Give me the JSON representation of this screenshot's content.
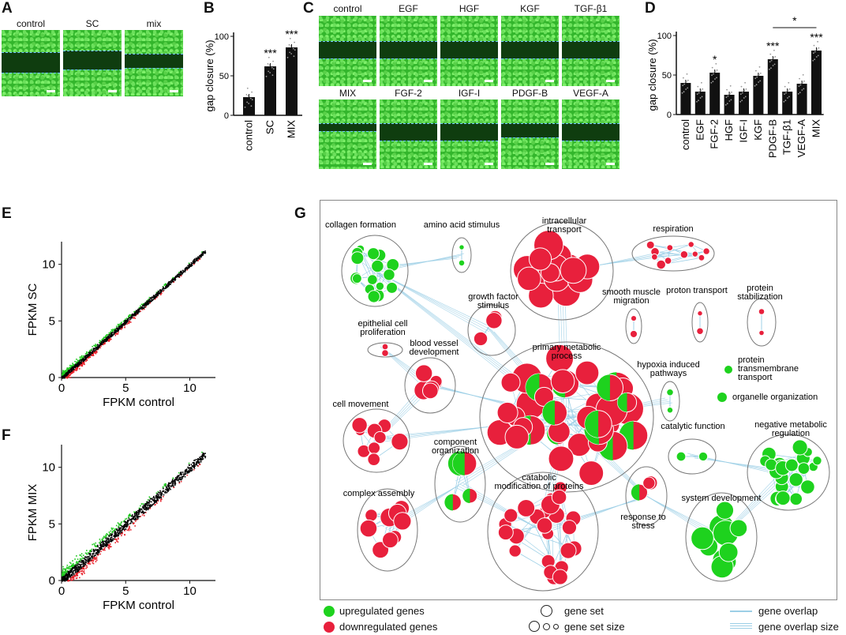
{
  "panels": {
    "A": "A",
    "B": "B",
    "C": "C",
    "D": "D",
    "E": "E",
    "F": "F",
    "G": "G"
  },
  "panelA": {
    "labels": [
      "control",
      "SC",
      "mix"
    ]
  },
  "panelC": {
    "row1": [
      "control",
      "EGF",
      "HGF",
      "KGF",
      "TGF-β1"
    ],
    "row2": [
      "MIX",
      "FGF-2",
      "IGF-I",
      "PDGF-B",
      "VEGF-A"
    ]
  },
  "chart_data": [
    {
      "type": "bar",
      "id": "B",
      "categories": [
        "control",
        "SC",
        "MIX"
      ],
      "values": [
        23,
        62,
        86
      ],
      "significance": [
        "",
        "***",
        "***"
      ],
      "ylabel": "gap closure (%)",
      "ylim": [
        0,
        100
      ],
      "yticks": [
        0,
        50,
        100
      ]
    },
    {
      "type": "bar",
      "id": "D",
      "categories": [
        "control",
        "EGF",
        "FGF-2",
        "HGF",
        "IGF-I",
        "KGF",
        "PDGF-B",
        "TGF-β1",
        "VEGF-A",
        "MIX"
      ],
      "values": [
        40,
        29,
        53,
        25,
        29,
        49,
        70,
        29,
        39,
        81
      ],
      "significance": [
        "",
        "",
        "*",
        "",
        "",
        "",
        "***",
        "",
        "",
        "***"
      ],
      "bracket": {
        "from": "PDGF-B",
        "to": "MIX",
        "label": "*"
      },
      "ylabel": "gap closure (%)",
      "ylim": [
        0,
        100
      ],
      "yticks": [
        0,
        50,
        100
      ]
    },
    {
      "type": "scatter",
      "id": "E",
      "xlabel": "FPKM control",
      "ylabel": "FPKM SC",
      "xlim": [
        0,
        12
      ],
      "ylim": [
        0,
        12
      ],
      "xticks": [
        0,
        5,
        10
      ],
      "yticks": [
        0,
        5,
        10
      ]
    },
    {
      "type": "scatter",
      "id": "F",
      "xlabel": "FPKM control",
      "ylabel": "FPKM MIX",
      "xlim": [
        0,
        12
      ],
      "ylim": [
        0,
        12
      ],
      "xticks": [
        0,
        5,
        10
      ],
      "yticks": [
        0,
        5,
        10
      ]
    }
  ],
  "network": {
    "clusters": [
      "collagen formation",
      "amino acid stimulus",
      "intracellular transport",
      "respiration",
      "growth factor stimulus",
      "smooth muscle migration",
      "proton transport",
      "protein stabilization",
      "epithelial cell proliferation",
      "blood vessel development",
      "primary metabolic process",
      "hypoxia induced pathways",
      "cell movement",
      "catalytic function",
      "negative metabolic regulation",
      "component organization",
      "catabolic modification of proteins",
      "complex assembly",
      "response to stress",
      "system development"
    ],
    "side_labels": [
      "protein transmembrane transport",
      "organelle organization"
    ]
  },
  "legend": {
    "up": "upregulated genes",
    "down": "downregulated genes",
    "gene_set": "gene set",
    "gene_set_size": "gene set size",
    "overlap": "gene overlap",
    "overlap_size": "gene overlap size"
  },
  "colors": {
    "up": "#1ed21e",
    "down": "#e8203c",
    "edge": "#9ccfe6",
    "scatter_mid": "#000000",
    "scatter_up": "#1ec81e",
    "scatter_down": "#e8202a"
  }
}
